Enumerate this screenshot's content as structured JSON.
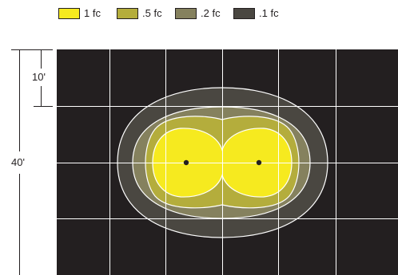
{
  "legend": {
    "items": [
      {
        "label": "1 fc",
        "color": "#f6ea1f"
      },
      {
        "label": ".5 fc",
        "color": "#b4ad3c"
      },
      {
        "label": ".2 fc",
        "color": "#85815e"
      },
      {
        "label": ".1 fc",
        "color": "#4a4741"
      }
    ]
  },
  "dimensions": {
    "grid_spacing_label": "10'",
    "total_height_label": "40'"
  },
  "colors": {
    "background": "#231f20",
    "grid_lines": "#ffffff",
    "contour_outline": "#ffffff",
    "fixture_dot": "#231f20",
    "fc_1": "#f6ea1f",
    "fc_05": "#b4ad3c",
    "fc_02": "#85815e",
    "fc_01": "#4a4741"
  },
  "fixtures": [
    "fixture-left",
    "fixture-right"
  ]
}
